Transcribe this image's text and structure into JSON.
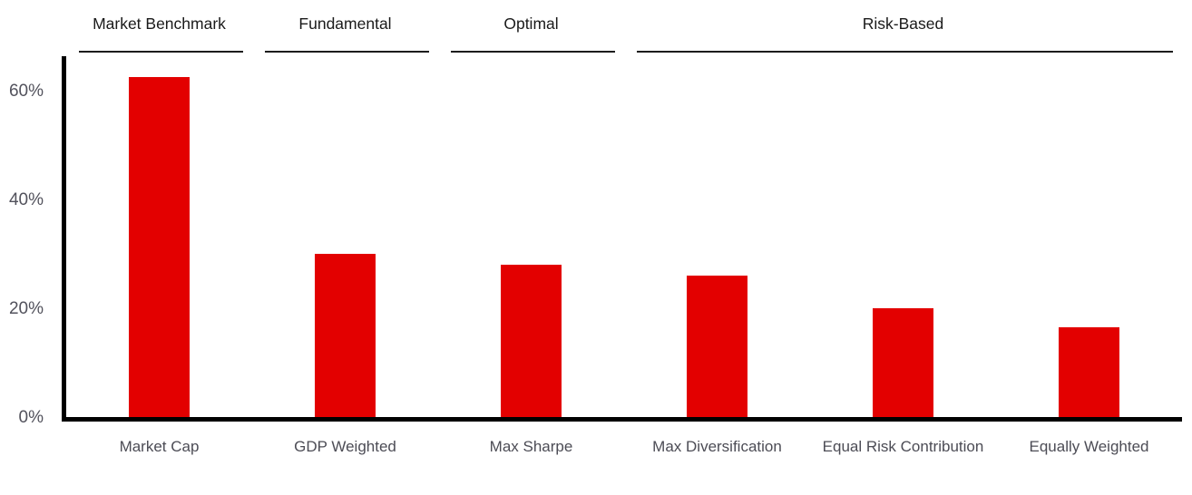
{
  "chart_data": {
    "type": "bar",
    "title": "",
    "xlabel": "",
    "ylabel": "",
    "unit": "%",
    "categories": [
      "Market Cap",
      "GDP Weighted",
      "Max Sharpe",
      "Max Diversification",
      "Equal Risk Contribution",
      "Equally Weighted"
    ],
    "values": [
      62.5,
      30,
      28,
      26,
      20,
      16.5
    ],
    "groups": [
      {
        "label": "Market Benchmark",
        "start": 0,
        "end": 0
      },
      {
        "label": "Fundamental",
        "start": 1,
        "end": 1
      },
      {
        "label": "Optimal",
        "start": 2,
        "end": 2
      },
      {
        "label": "Risk-Based",
        "start": 3,
        "end": 5
      }
    ],
    "y_ticks": [
      {
        "label": "0%",
        "value": 0
      },
      {
        "label": "20%",
        "value": 20
      },
      {
        "label": "40%",
        "value": 40
      },
      {
        "label": "60%",
        "value": 60
      }
    ],
    "ylim": [
      0,
      66.3
    ],
    "grid": false,
    "legend": null,
    "colors": {
      "bar": "#e30000",
      "axis": "#000000",
      "tick_label": "#52525c",
      "category_label": "#4c4c55",
      "group_label": "#1a1a1a",
      "group_underline": "#1c1c1c",
      "background": "#ffffff"
    }
  }
}
